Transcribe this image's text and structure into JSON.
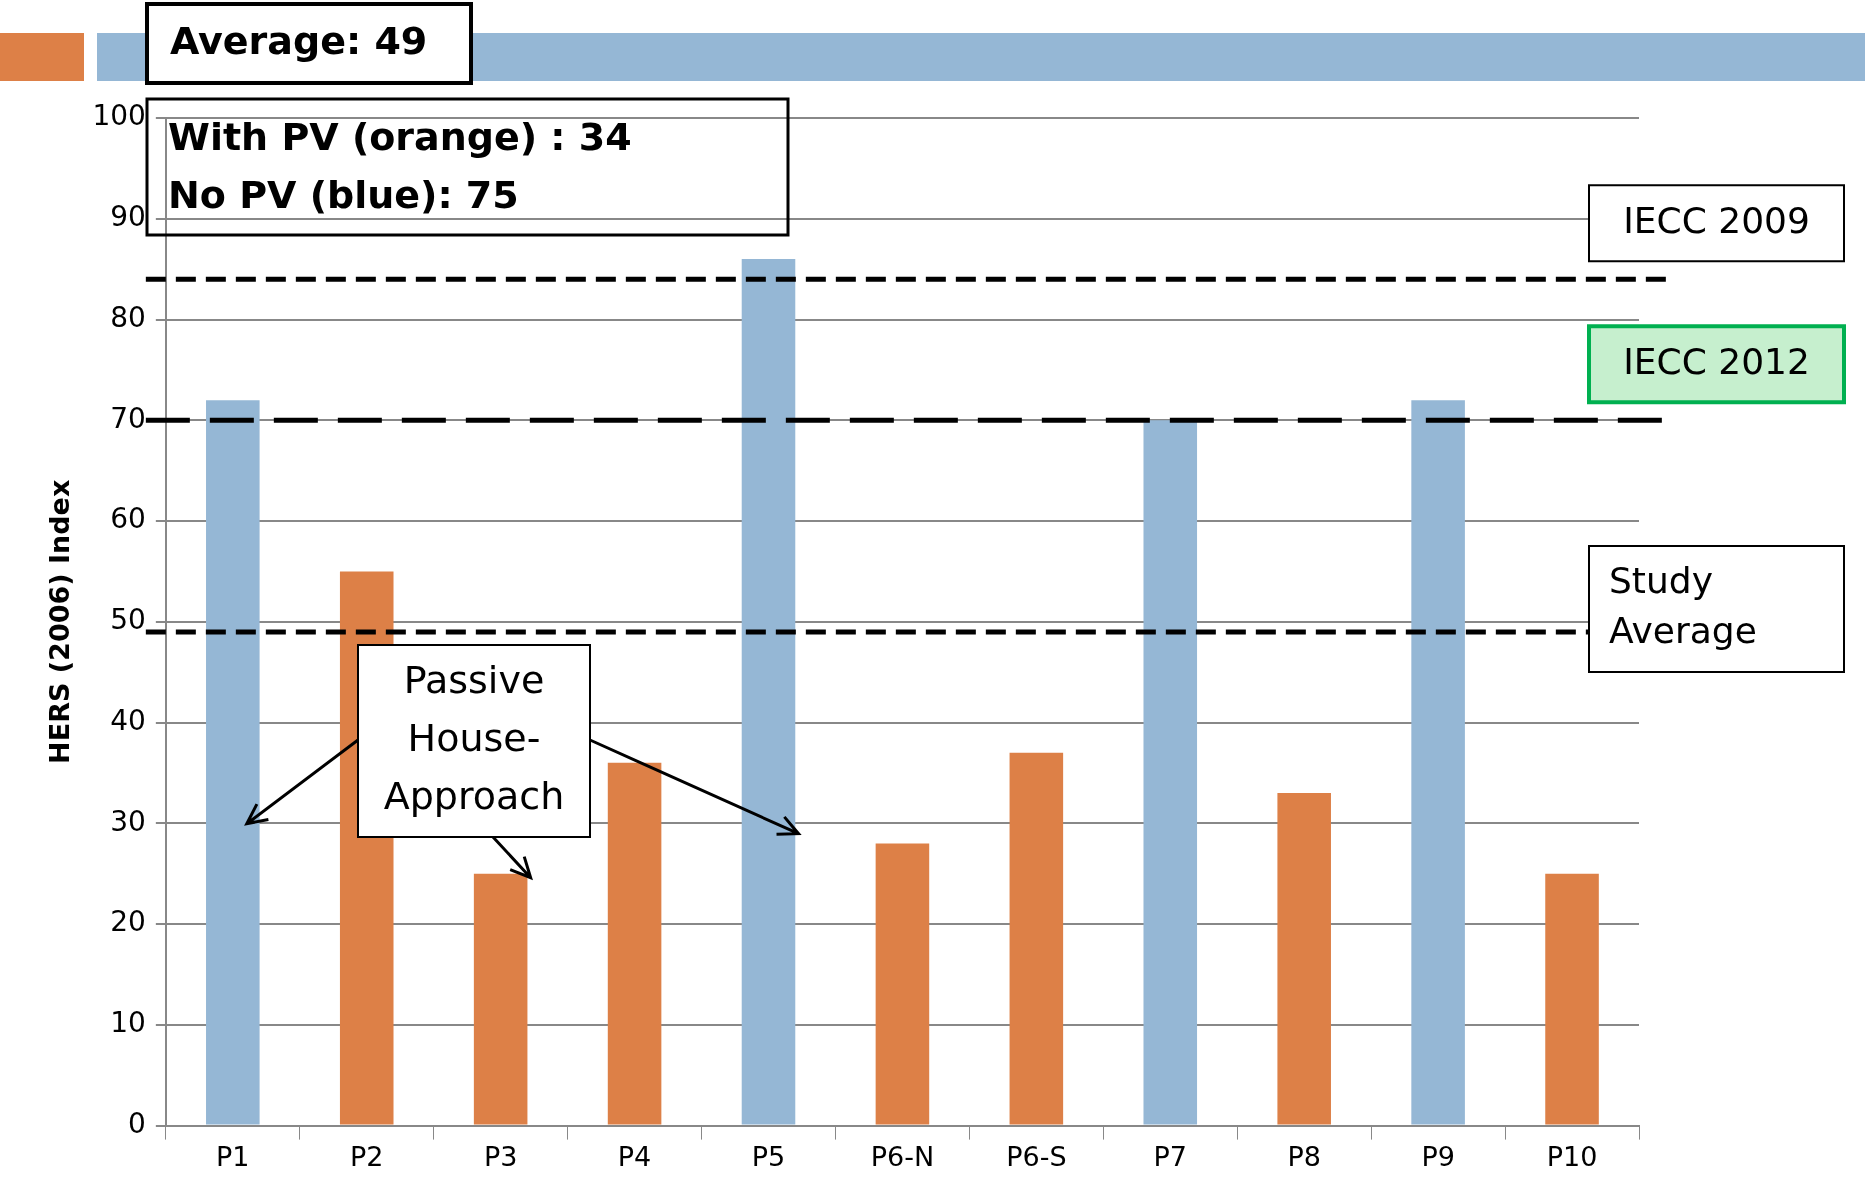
{
  "chart_data": {
    "type": "bar",
    "ylabel": "HERS (2006) Index",
    "categories": [
      "P1",
      "P2",
      "P3",
      "P4",
      "P5",
      "P6-N",
      "P6-S",
      "P7",
      "P8",
      "P9",
      "P10"
    ],
    "values": [
      72,
      55,
      25,
      36,
      86,
      28,
      37,
      70,
      33,
      72,
      25
    ],
    "colors": [
      "#95b7d5",
      "#dd8047",
      "#dd8047",
      "#dd8047",
      "#95b7d5",
      "#dd8047",
      "#dd8047",
      "#95b7d5",
      "#dd8047",
      "#95b7d5",
      "#dd8047"
    ],
    "ylim": [
      0,
      100
    ],
    "yticks": [
      0,
      10,
      20,
      30,
      40,
      50,
      60,
      70,
      80,
      90,
      100
    ],
    "grid": "y",
    "legend": false,
    "ref_lines": [
      {
        "axis": "y",
        "value": 84,
        "label": "IECC 2009",
        "color": "#000000",
        "line_style": "dashed"
      },
      {
        "axis": "y",
        "value": 70,
        "label": "IECC 2012",
        "color": "#000000",
        "line_style": "dashed"
      },
      {
        "axis": "y",
        "value": 49,
        "label": "Study Average",
        "color": "#000000",
        "line_style": "dashed"
      }
    ],
    "annotations": [
      "Average: 49",
      "With PV (orange) : 34",
      "No PV (blue): 75",
      {
        "text": "Passive House-Approach",
        "x": "P3",
        "y": 25
      }
    ]
  }
}
